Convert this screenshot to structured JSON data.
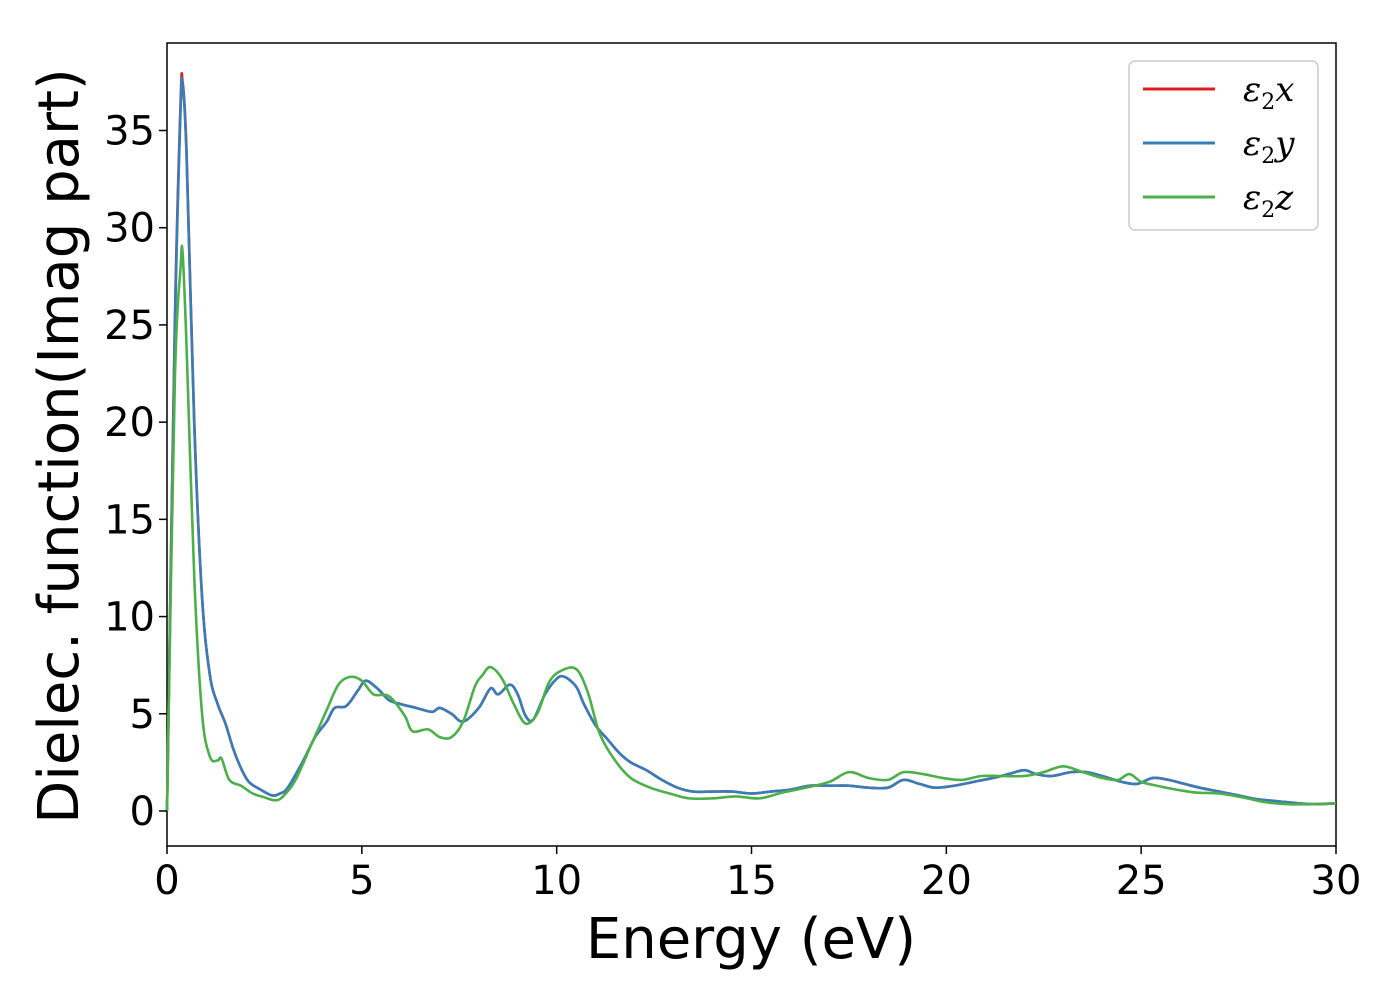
{
  "chart_data": {
    "type": "line",
    "title": "",
    "xlabel": "Energy (eV)",
    "ylabel": "Dielec. function(Imag part)",
    "xlim": [
      0,
      30
    ],
    "ylim": [
      -1.8,
      39.5
    ],
    "xticks": [
      "0",
      "5",
      "10",
      "15",
      "20",
      "25",
      "30"
    ],
    "yticks": [
      "0",
      "5",
      "10",
      "15",
      "20",
      "25",
      "30",
      "35"
    ],
    "grid": false,
    "legend_position": "top-right",
    "series": [
      {
        "name": "ε2x",
        "legend": {
          "base": "ε",
          "sub": "2",
          "suffix": "x"
        },
        "color": "#e41a1c",
        "x": [
          0,
          0.2,
          0.35,
          0.4,
          0.5,
          0.7,
          0.9,
          1.1,
          1.3,
          1.5,
          1.7,
          1.9,
          2.1,
          2.4,
          2.7,
          2.9,
          3.1,
          3.5,
          3.8,
          4.1,
          4.3,
          4.6,
          4.9,
          5.1,
          5.4,
          5.7,
          6,
          6.4,
          6.8,
          7,
          7.3,
          7.6,
          8,
          8.3,
          8.5,
          8.8,
          9,
          9.2,
          9.4,
          9.7,
          10,
          10.2,
          10.5,
          10.7,
          11,
          11.3,
          11.6,
          11.9,
          12.3,
          12.7,
          13.1,
          13.5,
          14,
          14.5,
          15,
          15.5,
          16,
          16.5,
          17,
          17.5,
          18,
          18.5,
          18.9,
          19.3,
          19.7,
          20.2,
          20.7,
          21.2,
          21.6,
          22,
          22.3,
          22.7,
          23.2,
          23.6,
          24,
          24.5,
          24.9,
          25.3,
          25.7,
          26.1,
          26.5,
          27,
          27.5,
          28,
          28.5,
          29,
          29.5,
          30
        ],
        "y": [
          0,
          25,
          36.5,
          37.5,
          34,
          20,
          11,
          7,
          5.5,
          4.5,
          3.2,
          2.2,
          1.5,
          1.1,
          0.8,
          0.9,
          1.2,
          2.6,
          3.8,
          4.6,
          5.3,
          5.4,
          6.2,
          6.7,
          6.3,
          5.7,
          5.5,
          5.3,
          5.1,
          5.3,
          5,
          4.6,
          5.3,
          6.3,
          6,
          6.5,
          6,
          4.9,
          4.7,
          6,
          6.8,
          6.9,
          6.4,
          5.5,
          4.4,
          3.7,
          3,
          2.5,
          2.1,
          1.6,
          1.2,
          1,
          1,
          1,
          0.9,
          1,
          1.1,
          1.3,
          1.3,
          1.3,
          1.2,
          1.2,
          1.6,
          1.4,
          1.2,
          1.3,
          1.5,
          1.7,
          1.9,
          2.1,
          1.9,
          1.8,
          2,
          2,
          1.8,
          1.5,
          1.4,
          1.7,
          1.6,
          1.4,
          1.2,
          1,
          0.8,
          0.6,
          0.5,
          0.4,
          0.35,
          0.4
        ]
      },
      {
        "name": "ε2y",
        "legend": {
          "base": "ε",
          "sub": "2",
          "suffix": "y"
        },
        "color": "#377eb8",
        "x": [
          0,
          0.2,
          0.35,
          0.4,
          0.5,
          0.7,
          0.9,
          1.1,
          1.3,
          1.5,
          1.7,
          1.9,
          2.1,
          2.4,
          2.7,
          2.9,
          3.1,
          3.5,
          3.8,
          4.1,
          4.3,
          4.6,
          4.9,
          5.1,
          5.4,
          5.7,
          6,
          6.4,
          6.8,
          7,
          7.3,
          7.6,
          8,
          8.3,
          8.5,
          8.8,
          9,
          9.2,
          9.4,
          9.7,
          10,
          10.2,
          10.5,
          10.7,
          11,
          11.3,
          11.6,
          11.9,
          12.3,
          12.7,
          13.1,
          13.5,
          14,
          14.5,
          15,
          15.5,
          16,
          16.5,
          17,
          17.5,
          18,
          18.5,
          18.9,
          19.3,
          19.7,
          20.2,
          20.7,
          21.2,
          21.6,
          22,
          22.3,
          22.7,
          23.2,
          23.6,
          24,
          24.5,
          24.9,
          25.3,
          25.7,
          26.1,
          26.5,
          27,
          27.5,
          28,
          28.5,
          29,
          29.5,
          30
        ],
        "y": [
          0,
          24.5,
          36.2,
          37.3,
          33.8,
          19.8,
          11,
          7,
          5.5,
          4.5,
          3.2,
          2.2,
          1.5,
          1.1,
          0.8,
          0.9,
          1.2,
          2.6,
          3.8,
          4.6,
          5.3,
          5.4,
          6.2,
          6.7,
          6.3,
          5.7,
          5.5,
          5.3,
          5.1,
          5.3,
          5,
          4.6,
          5.3,
          6.3,
          6,
          6.5,
          6,
          4.9,
          4.7,
          6,
          6.8,
          6.9,
          6.4,
          5.5,
          4.4,
          3.7,
          3,
          2.5,
          2.1,
          1.6,
          1.2,
          1,
          1,
          1,
          0.9,
          1,
          1.1,
          1.3,
          1.3,
          1.3,
          1.2,
          1.2,
          1.6,
          1.4,
          1.2,
          1.3,
          1.5,
          1.7,
          1.9,
          2.1,
          1.9,
          1.8,
          2,
          2,
          1.8,
          1.5,
          1.4,
          1.7,
          1.6,
          1.4,
          1.2,
          1,
          0.8,
          0.6,
          0.5,
          0.4,
          0.35,
          0.4
        ]
      },
      {
        "name": "ε2z",
        "legend": {
          "base": "ε",
          "sub": "2",
          "suffix": "z"
        },
        "color": "#4daf4a",
        "x": [
          0,
          0.2,
          0.35,
          0.4,
          0.5,
          0.7,
          0.9,
          1.1,
          1.3,
          1.4,
          1.6,
          1.9,
          2.2,
          2.5,
          2.8,
          3,
          3.3,
          3.7,
          4.1,
          4.4,
          4.7,
          5,
          5.3,
          5.7,
          6.1,
          6.3,
          6.7,
          7,
          7.3,
          7.6,
          7.9,
          8.1,
          8.3,
          8.6,
          8.9,
          9.2,
          9.5,
          9.8,
          10.1,
          10.5,
          10.8,
          11.1,
          11.5,
          11.9,
          12.4,
          12.9,
          13.4,
          14,
          14.6,
          15.2,
          15.8,
          16.4,
          17,
          17.5,
          18,
          18.5,
          18.9,
          19.4,
          19.9,
          20.4,
          20.9,
          21.4,
          22,
          22.5,
          23,
          23.5,
          24,
          24.4,
          24.7,
          25,
          25.4,
          25.9,
          26.4,
          27,
          27.6,
          28.2,
          28.8,
          29.4,
          30
        ],
        "y": [
          0,
          22,
          28,
          28.7,
          24,
          12,
          5,
          2.8,
          2.6,
          2.7,
          1.6,
          1.3,
          0.9,
          0.7,
          0.55,
          0.8,
          1.6,
          3.4,
          5.2,
          6.5,
          6.9,
          6.7,
          6,
          5.9,
          4.9,
          4.1,
          4.2,
          3.8,
          3.8,
          4.6,
          6.4,
          7,
          7.4,
          6.8,
          5.5,
          4.5,
          5,
          6.6,
          7.2,
          7.3,
          6.1,
          4,
          2.6,
          1.7,
          1.2,
          0.9,
          0.65,
          0.65,
          0.75,
          0.65,
          0.95,
          1.2,
          1.5,
          2,
          1.7,
          1.6,
          2,
          1.9,
          1.7,
          1.6,
          1.8,
          1.8,
          1.8,
          2,
          2.3,
          2,
          1.7,
          1.6,
          1.9,
          1.5,
          1.3,
          1.1,
          0.95,
          0.9,
          0.7,
          0.45,
          0.35,
          0.35,
          0.4
        ]
      }
    ]
  }
}
